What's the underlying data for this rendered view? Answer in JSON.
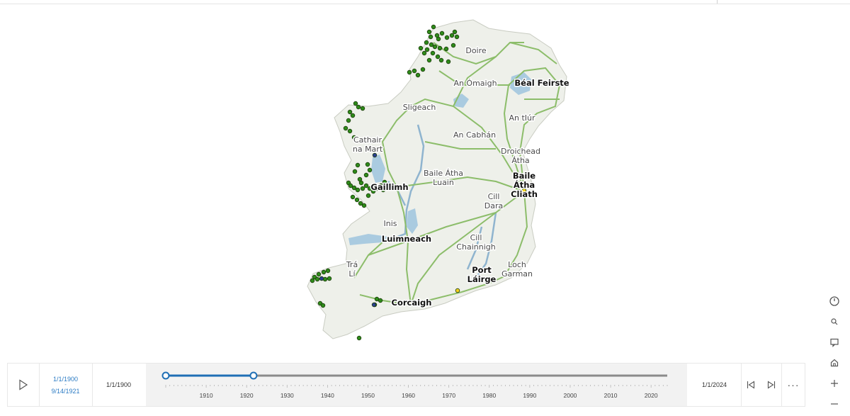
{
  "map": {
    "places": [
      {
        "name": "Doire",
        "major": false
      },
      {
        "name": "An Ómaigh",
        "major": false
      },
      {
        "name": "Béal Feirste",
        "major": true
      },
      {
        "name": "Sligeach",
        "major": false
      },
      {
        "name": "An tIúr",
        "major": false
      },
      {
        "name": "An Cabhán",
        "major": false
      },
      {
        "name": "Cathair\nna Mart",
        "major": false
      },
      {
        "name": "Droichead\nÁtha",
        "major": false
      },
      {
        "name": "Baile Átha\nLuain",
        "major": false
      },
      {
        "name": "Baile\nÁtha\nCliath",
        "major": true
      },
      {
        "name": "Gaillimh",
        "major": true
      },
      {
        "name": "Cill\nDara",
        "major": false
      },
      {
        "name": "Inis",
        "major": false
      },
      {
        "name": "Luimneach",
        "major": true
      },
      {
        "name": "Cill\nChainnigh",
        "major": false
      },
      {
        "name": "Trá\nLí",
        "major": false
      },
      {
        "name": "Port\nLáirge",
        "major": true
      },
      {
        "name": "Loch\nGarman",
        "major": false
      },
      {
        "name": "Corcaigh",
        "major": true
      }
    ],
    "colors": {
      "land": "#eef0ea",
      "water": "#aacbe0",
      "river": "#8fb4cf",
      "road": "#8cbd6a",
      "point_green": "#2e8b1a",
      "point_blue": "#2a3f8f",
      "point_yellow": "#f2d21e",
      "point_stroke": "#1a3a0a"
    }
  },
  "tools": [
    {
      "name": "clock-icon",
      "glyph": "clock"
    },
    {
      "name": "search-icon",
      "glyph": "search"
    },
    {
      "name": "comment-icon",
      "glyph": "comment"
    },
    {
      "name": "home-icon",
      "glyph": "home"
    },
    {
      "name": "zoom-in-icon",
      "glyph": "+"
    },
    {
      "name": "zoom-out-icon",
      "glyph": "−"
    }
  ],
  "timeslider": {
    "range_start": "1/1/1900",
    "range_sep": "-",
    "range_end": "9/14/1921",
    "start_label": "1/1/1900",
    "end_label": "1/1/2024",
    "min_year": 1900,
    "max_year": 2024,
    "thumb_start_year": 1900,
    "thumb_end_year": 1921.7,
    "ticks": [
      "1910",
      "1920",
      "1930",
      "1940",
      "1950",
      "1960",
      "1970",
      "1980",
      "1990",
      "2000",
      "2010",
      "2020"
    ],
    "more_label": "···"
  }
}
